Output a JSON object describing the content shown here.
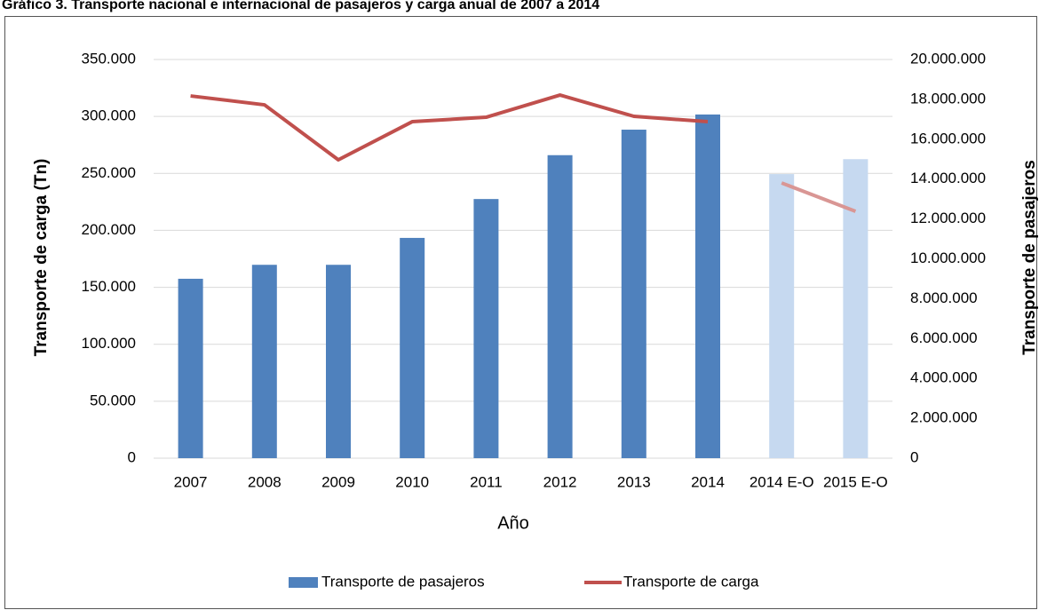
{
  "chart_data": {
    "type": "bar-line",
    "title": "Gráfico 3. Transporte nacional e internacional de pasajeros y carga anual de 2007 a 2014",
    "x_label": "Año",
    "y_label": "Transporte de carga (Tn)",
    "y2_label": "Transporte de pasajeros",
    "categories": [
      "2007",
      "2008",
      "2009",
      "2010",
      "2011",
      "2012",
      "2013",
      "2014",
      "2014 E-O",
      "2015 E-O"
    ],
    "ylim": [
      0,
      350000
    ],
    "yticks": [
      0,
      {
        "value": 50000,
        "label": "50.000"
      },
      {
        "value": 100000,
        "label": "100.000"
      },
      {
        "value": 150000,
        "label": "150.000"
      },
      {
        "value": 200000,
        "label": "200.000"
      },
      {
        "value": 250000,
        "label": "250.000"
      },
      {
        "value": 300000,
        "label": "300.000"
      },
      {
        "value": 350000,
        "label": "350.000"
      }
    ],
    "y2lim": [
      0,
      20000000
    ],
    "y2ticks": [
      0,
      {
        "value": 2000000,
        "label": "2.000.000"
      },
      {
        "value": 4000000,
        "label": "4.000.000"
      },
      {
        "value": 6000000,
        "label": "6.000.000"
      },
      {
        "value": 8000000,
        "label": "8.000.000"
      },
      {
        "value": 10000000,
        "label": "10.000.000"
      },
      {
        "value": 12000000,
        "label": "12.000.000"
      },
      {
        "value": 14000000,
        "label": "14.000.000"
      },
      {
        "value": 16000000,
        "label": "16.000.000"
      },
      {
        "value": 18000000,
        "label": "18.000.000"
      },
      {
        "value": 20000000,
        "label": "20.000.000"
      }
    ],
    "grid": true,
    "legend": "bottom",
    "series": [
      {
        "name": "Transporte de pasajeros",
        "type": "bar",
        "axis": "y2",
        "color": "#4f81bd",
        "colors": [
          "#4f81bd",
          "#4f81bd",
          "#4f81bd",
          "#4f81bd",
          "#4f81bd",
          "#4f81bd",
          "#4f81bd",
          "#4f81bd",
          "#c6d9f0",
          "#c6d9f0"
        ],
        "values": [
          9000000,
          9700000,
          9700000,
          11050000,
          13000000,
          15200000,
          16480000,
          17240000,
          14250000,
          15000000
        ]
      },
      {
        "name": "Transporte de carga",
        "type": "line",
        "axis": "y",
        "color": "#c0504d",
        "colors": [
          "#c0504d",
          "#c0504d",
          "#c0504d",
          "#c0504d",
          "#c0504d",
          "#c0504d",
          "#c0504d",
          "#c0504d",
          "#d99694",
          "#d99694"
        ],
        "values": [
          318000,
          310200,
          261900,
          295400,
          299300,
          318800,
          300100,
          295400,
          241600,
          216700
        ]
      }
    ]
  }
}
